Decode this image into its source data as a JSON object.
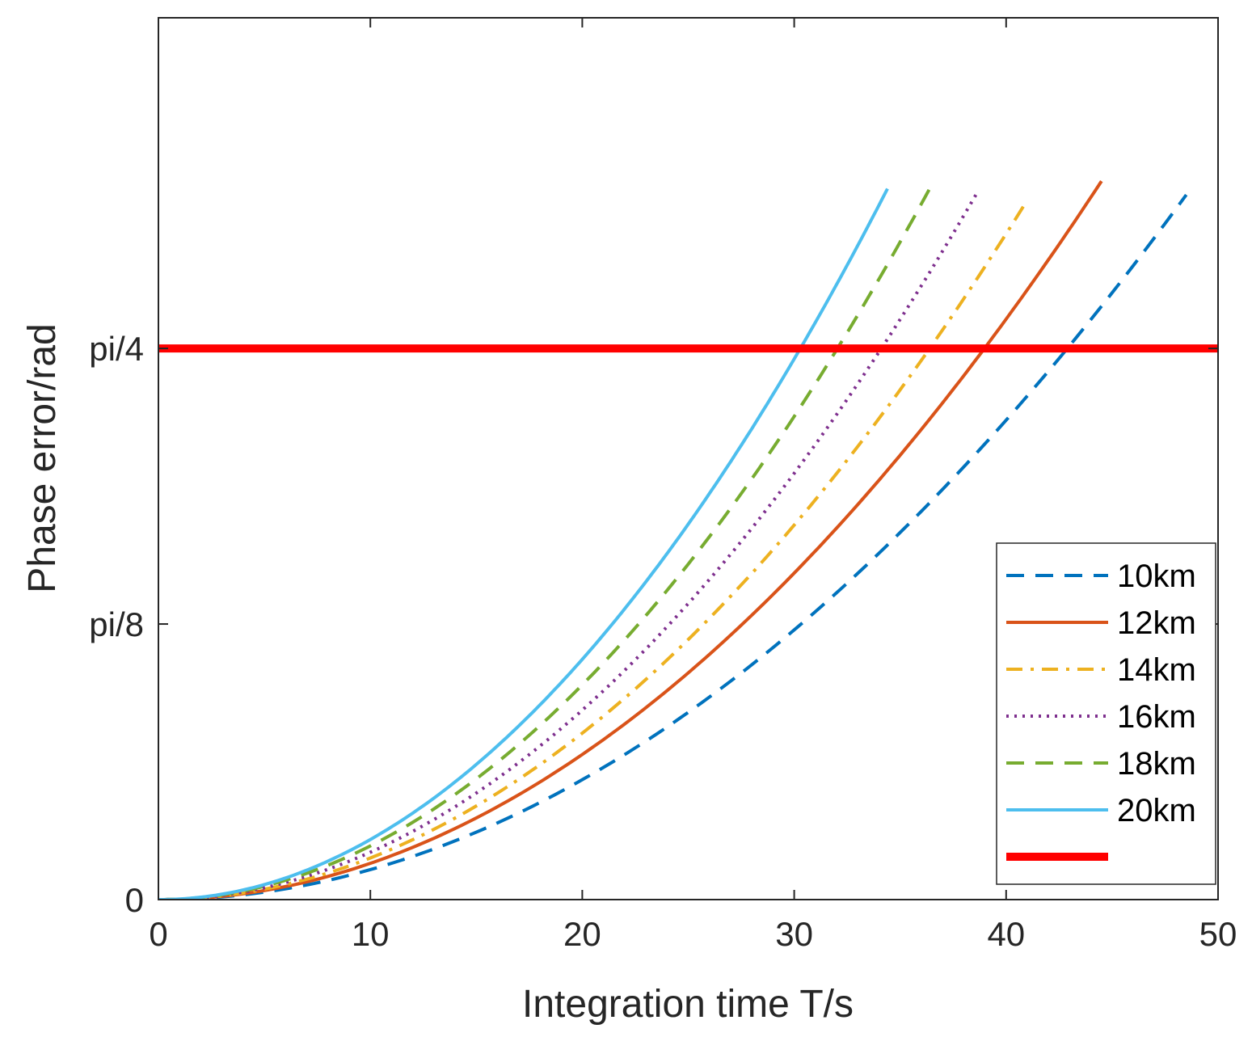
{
  "chart_data": {
    "type": "line",
    "title": "",
    "xlabel": "Integration time T/s",
    "ylabel": "Phase error/rad",
    "xlim": [
      0,
      50
    ],
    "ylim": [
      0,
      1.2566
    ],
    "x_ticks": [
      0,
      10,
      20,
      30,
      40,
      50
    ],
    "x_tick_labels": [
      "0",
      "10",
      "20",
      "30",
      "40",
      "50"
    ],
    "y_ticks": [
      0,
      0.3927,
      0.7854
    ],
    "y_tick_labels": [
      "0",
      "pi/8",
      "pi/4"
    ],
    "grid": false,
    "legend_position": "bottom-right",
    "series": [
      {
        "name": "10km",
        "color": "#0072BD",
        "style": "dashed",
        "model": "quadratic",
        "coef": 0.000427,
        "x_max": 48.5
      },
      {
        "name": "12km",
        "color": "#D95319",
        "style": "solid",
        "model": "quadratic",
        "coef": 0.000517,
        "x_max": 44.5
      },
      {
        "name": "14km",
        "color": "#EDB120",
        "style": "dashdot",
        "model": "quadratic",
        "coef": 0.000593,
        "x_max": 41.0
      },
      {
        "name": "16km",
        "color": "#7E2F8E",
        "style": "dotted",
        "model": "quadratic",
        "coef": 0.000675,
        "x_max": 38.6
      },
      {
        "name": "18km",
        "color": "#77AC30",
        "style": "dashed",
        "model": "quadratic",
        "coef": 0.000765,
        "x_max": 36.4
      },
      {
        "name": "20km",
        "color": "#4DBEEE",
        "style": "solid",
        "model": "quadratic",
        "coef": 0.000856,
        "x_max": 34.4
      },
      {
        "name": "",
        "color": "#FF0000",
        "style": "thick",
        "model": "constant",
        "value": 0.7854,
        "x_max": 50
      }
    ]
  }
}
